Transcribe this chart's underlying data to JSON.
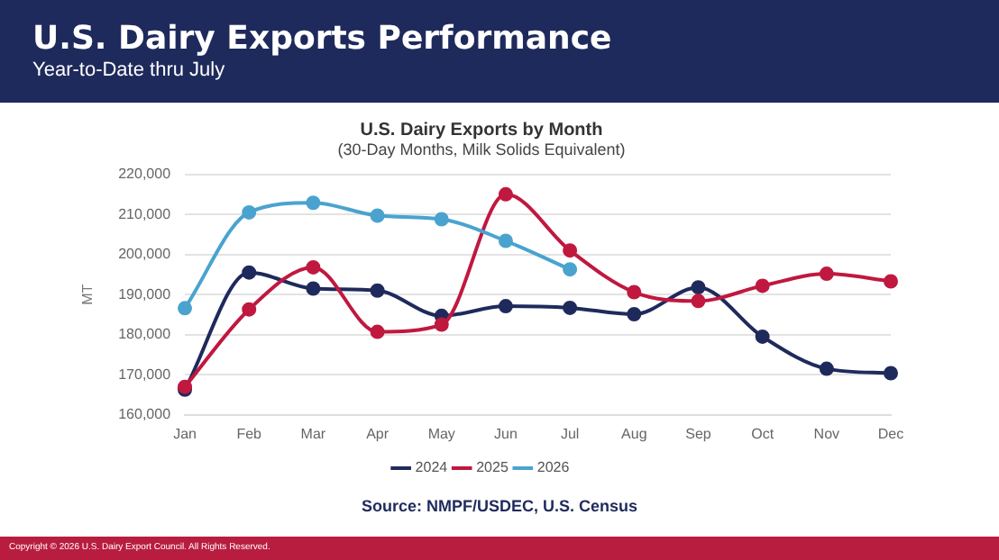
{
  "chart_data": {
    "type": "line",
    "title": "U.S. Dairy Exports Performance",
    "subtitle": "Year-to-Date thru July",
    "ylabel": "MT",
    "annotations": [
      "U.S. Dairy Exports by Month",
      "(30-Day Months, Milk Solids Equivalent)",
      "Source: NMPF/USDEC, U.S. Census",
      "Copyright © 2026 U.S. Dairy Export Council. All Rights Reserved."
    ],
    "categories": [
      "Jan",
      "Feb",
      "Mar",
      "Apr",
      "May",
      "Jun",
      "Jul",
      "Aug",
      "Sep",
      "Oct",
      "Nov",
      "Dec"
    ],
    "series": [
      {
        "name": "2024",
        "color": "#1f2a5c",
        "values": [
          166300,
          195500,
          191500,
          191000,
          184700,
          187100,
          186700,
          185100,
          191800,
          179500,
          171500,
          170400
        ]
      },
      {
        "name": "2025",
        "color": "#c0183f",
        "values": [
          167000,
          186300,
          196800,
          180700,
          182500,
          215000,
          201000,
          190600,
          188400,
          192200,
          195200,
          193300
        ]
      },
      {
        "name": "2026",
        "color": "#4aa3cf",
        "values": [
          186600,
          210500,
          212900,
          209700,
          208800,
          203400,
          196300,
          null,
          null,
          null,
          null,
          null
        ]
      }
    ],
    "ylim": [
      160000,
      220000
    ],
    "yticks": [
      {
        "value": 160000,
        "label": "160,000"
      },
      {
        "value": 170000,
        "label": "170,000"
      },
      {
        "value": 180000,
        "label": "180,000"
      },
      {
        "value": 190000,
        "label": "190,000"
      },
      {
        "value": 200000,
        "label": "200,000"
      },
      {
        "value": 210000,
        "label": "210,000"
      },
      {
        "value": 220000,
        "label": "220,000"
      }
    ],
    "grid": "y",
    "legend": "bottom",
    "marker": "circle",
    "line_style": "solid"
  }
}
